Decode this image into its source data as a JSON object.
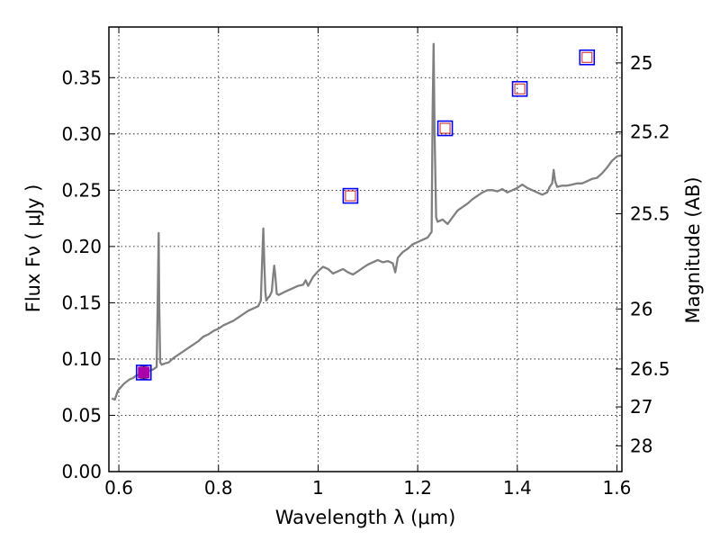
{
  "chart_data": {
    "type": "line",
    "xlabel": "Wavelength  λ (μm)",
    "ylabel": "Flux  Fν  ( μJy )",
    "y2label": "Magnitude (AB)",
    "xlim": [
      0.58,
      1.61
    ],
    "ylim": [
      0.0,
      0.395
    ],
    "grid": true,
    "x_ticks": [
      {
        "value": 0.6,
        "label": "0.6"
      },
      {
        "value": 0.8,
        "label": "0.8"
      },
      {
        "value": 1.0,
        "label": "1"
      },
      {
        "value": 1.2,
        "label": "1.2"
      },
      {
        "value": 1.4,
        "label": "1.4"
      },
      {
        "value": 1.6,
        "label": "1.6"
      }
    ],
    "y_ticks": [
      {
        "value": 0.0,
        "label": "0.00"
      },
      {
        "value": 0.05,
        "label": "0.05"
      },
      {
        "value": 0.1,
        "label": "0.10"
      },
      {
        "value": 0.15,
        "label": "0.15"
      },
      {
        "value": 0.2,
        "label": "0.20"
      },
      {
        "value": 0.25,
        "label": "0.25"
      },
      {
        "value": 0.3,
        "label": "0.30"
      },
      {
        "value": 0.35,
        "label": "0.35"
      }
    ],
    "y2_ticks": [
      {
        "flux": 0.3631,
        "label": "25"
      },
      {
        "flux": 0.3017,
        "label": "25.2"
      },
      {
        "flux": 0.2291,
        "label": "25.5"
      },
      {
        "flux": 0.1445,
        "label": "26"
      },
      {
        "flux": 0.0912,
        "label": "26.5"
      },
      {
        "flux": 0.0575,
        "label": "27"
      },
      {
        "flux": 0.0229,
        "label": "28"
      }
    ],
    "series": [
      {
        "color": "#808080",
        "x": [
          0.586,
          0.592,
          0.598,
          0.604,
          0.61,
          0.616,
          0.622,
          0.628,
          0.634,
          0.64,
          0.646,
          0.652,
          0.658,
          0.664,
          0.67,
          0.676,
          0.678,
          0.68,
          0.681,
          0.683,
          0.686,
          0.692,
          0.7,
          0.71,
          0.72,
          0.73,
          0.74,
          0.75,
          0.76,
          0.77,
          0.78,
          0.79,
          0.8,
          0.81,
          0.82,
          0.83,
          0.84,
          0.85,
          0.86,
          0.87,
          0.88,
          0.885,
          0.888,
          0.89,
          0.892,
          0.894,
          0.896,
          0.899,
          0.903,
          0.907,
          0.91,
          0.912,
          0.914,
          0.917,
          0.921,
          0.93,
          0.94,
          0.95,
          0.96,
          0.97,
          0.975,
          0.98,
          0.99,
          1.0,
          1.01,
          1.02,
          1.03,
          1.04,
          1.05,
          1.06,
          1.07,
          1.08,
          1.09,
          1.1,
          1.11,
          1.12,
          1.13,
          1.14,
          1.15,
          1.155,
          1.16,
          1.17,
          1.18,
          1.19,
          1.2,
          1.21,
          1.22,
          1.228,
          1.23,
          1.232,
          1.234,
          1.237,
          1.24,
          1.25,
          1.26,
          1.27,
          1.28,
          1.29,
          1.3,
          1.31,
          1.32,
          1.33,
          1.34,
          1.35,
          1.36,
          1.37,
          1.38,
          1.39,
          1.4,
          1.41,
          1.42,
          1.43,
          1.44,
          1.45,
          1.46,
          1.465,
          1.47,
          1.473,
          1.476,
          1.48,
          1.49,
          1.5,
          1.51,
          1.52,
          1.53,
          1.54,
          1.55,
          1.56,
          1.57,
          1.58,
          1.59,
          1.6,
          1.61
        ],
        "y": [
          0.065,
          0.064,
          0.072,
          0.075,
          0.078,
          0.08,
          0.082,
          0.083,
          0.085,
          0.086,
          0.087,
          0.088,
          0.089,
          0.09,
          0.091,
          0.093,
          0.15,
          0.212,
          0.15,
          0.097,
          0.095,
          0.096,
          0.097,
          0.101,
          0.104,
          0.107,
          0.11,
          0.113,
          0.116,
          0.12,
          0.122,
          0.125,
          0.127,
          0.13,
          0.132,
          0.134,
          0.137,
          0.14,
          0.143,
          0.145,
          0.147,
          0.152,
          0.19,
          0.216,
          0.185,
          0.16,
          0.152,
          0.154,
          0.156,
          0.16,
          0.175,
          0.183,
          0.175,
          0.158,
          0.157,
          0.159,
          0.161,
          0.163,
          0.165,
          0.166,
          0.17,
          0.165,
          0.173,
          0.178,
          0.182,
          0.18,
          0.176,
          0.178,
          0.18,
          0.177,
          0.175,
          0.178,
          0.181,
          0.184,
          0.186,
          0.188,
          0.186,
          0.187,
          0.185,
          0.177,
          0.19,
          0.195,
          0.198,
          0.202,
          0.204,
          0.206,
          0.208,
          0.213,
          0.32,
          0.38,
          0.3,
          0.226,
          0.222,
          0.224,
          0.22,
          0.226,
          0.232,
          0.235,
          0.238,
          0.242,
          0.245,
          0.248,
          0.25,
          0.25,
          0.249,
          0.251,
          0.248,
          0.25,
          0.252,
          0.255,
          0.252,
          0.25,
          0.248,
          0.246,
          0.248,
          0.253,
          0.256,
          0.268,
          0.258,
          0.253,
          0.254,
          0.254,
          0.255,
          0.256,
          0.256,
          0.258,
          0.26,
          0.261,
          0.265,
          0.27,
          0.276,
          0.28,
          0.281
        ]
      }
    ],
    "photometry": [
      {
        "x": 0.65,
        "y": 0.088,
        "yerr": 0.006,
        "filled": true
      },
      {
        "x": 1.065,
        "y": 0.245
      },
      {
        "x": 1.255,
        "y": 0.305
      },
      {
        "x": 1.405,
        "y": 0.34
      },
      {
        "x": 1.54,
        "y": 0.368
      }
    ]
  }
}
